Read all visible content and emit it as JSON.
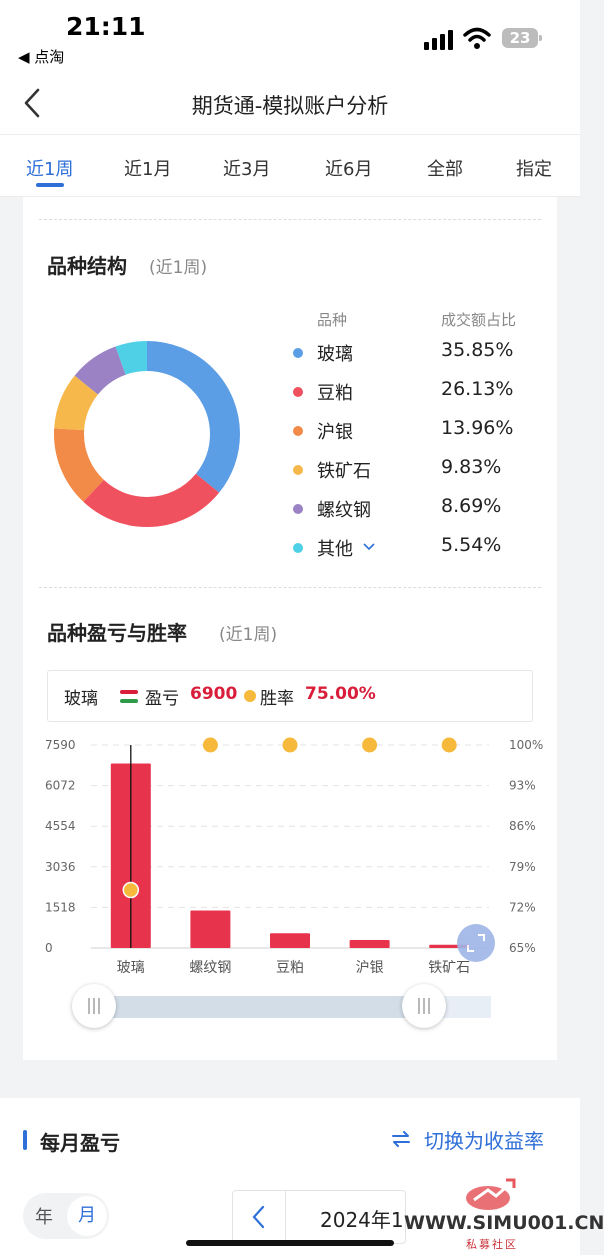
{
  "status": {
    "time": "21:11",
    "back_app": "◀ 点淘",
    "battery": "23"
  },
  "nav": {
    "title": "期货通-模拟账户分析"
  },
  "tabs": [
    {
      "label": "近1周",
      "active": true
    },
    {
      "label": "近1月"
    },
    {
      "label": "近3月"
    },
    {
      "label": "近6月"
    },
    {
      "label": "全部"
    },
    {
      "label": "指定"
    }
  ],
  "structure": {
    "title": "品种结构",
    "period": "(近1周)",
    "head_variety": "品种",
    "head_share": "成交额占比",
    "items": [
      {
        "name": "玻璃",
        "share": "35.85%",
        "value": 35.85,
        "color": "#5b9ee6"
      },
      {
        "name": "豆粕",
        "share": "26.13%",
        "value": 26.13,
        "color": "#f0515f"
      },
      {
        "name": "沪银",
        "share": "13.96%",
        "value": 13.96,
        "color": "#f28a48"
      },
      {
        "name": "铁矿石",
        "share": "9.83%",
        "value": 9.83,
        "color": "#f6b84a"
      },
      {
        "name": "螺纹钢",
        "share": "8.69%",
        "value": 8.69,
        "color": "#9b82c4"
      },
      {
        "name": "其他",
        "share": "5.54%",
        "value": 5.54,
        "color": "#4fd0e6"
      }
    ]
  },
  "pnl": {
    "title": "品种盈亏与胜率",
    "period": "(近1周)",
    "tooltip": {
      "name": "玻璃",
      "pl_label": "盈亏",
      "pl_value": "6900",
      "wr_label": "胜率",
      "wr_value": "75.00%"
    }
  },
  "chart_data": {
    "type": "bar",
    "categories": [
      "玻璃",
      "螺纹钢",
      "豆粕",
      "沪银",
      "铁矿石"
    ],
    "series": [
      {
        "name": "盈亏",
        "type": "bar",
        "values": [
          6900,
          1400,
          550,
          300,
          120
        ]
      },
      {
        "name": "胜率",
        "type": "scatter",
        "values": [
          75,
          100,
          100,
          100,
          100
        ]
      }
    ],
    "y_left": {
      "ticks": [
        "7590",
        "6072",
        "4554",
        "3036",
        "1518",
        "0"
      ],
      "range": [
        0,
        7590
      ]
    },
    "y_right": {
      "ticks": [
        "100%",
        "93%",
        "86%",
        "79%",
        "72%",
        "65%"
      ],
      "range": [
        65,
        100
      ]
    },
    "colors": {
      "bar": "#e8334d",
      "dot": "#f6b93b"
    },
    "selected_category": "玻璃"
  },
  "monthly": {
    "title": "每月盈亏",
    "switch_label": "切换为收益率",
    "year_label": "年",
    "month_label": "月",
    "date_value": "2024年1"
  },
  "watermark": {
    "site": "WWW.SIMU001.CN",
    "sub": "私募社区"
  }
}
